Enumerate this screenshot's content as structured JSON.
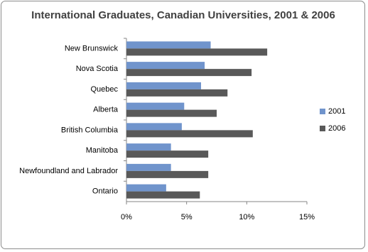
{
  "chart_data": {
    "type": "hbar",
    "title": "International Graduates, Canadian Universities, 2001 & 2006",
    "categories": [
      "New Brunswick",
      "Nova Scotia",
      "Quebec",
      "Alberta",
      "British Columbia",
      "Manitoba",
      "Newfoundland and Labrador",
      "Ontario"
    ],
    "series": [
      {
        "name": "2001",
        "color": "#7094cc",
        "values": [
          7.0,
          6.5,
          6.2,
          4.8,
          4.6,
          3.7,
          3.7,
          3.3
        ]
      },
      {
        "name": "2006",
        "color": "#595959",
        "values": [
          11.7,
          10.4,
          8.4,
          7.5,
          10.5,
          6.8,
          6.8,
          6.1
        ]
      }
    ],
    "xlim": [
      0,
      15
    ],
    "xticks": [
      {
        "value": 0,
        "label": "0%"
      },
      {
        "value": 5,
        "label": "5%"
      },
      {
        "value": 10,
        "label": "10%"
      },
      {
        "value": 15,
        "label": "15%"
      }
    ],
    "grid": false,
    "legend": "right"
  }
}
